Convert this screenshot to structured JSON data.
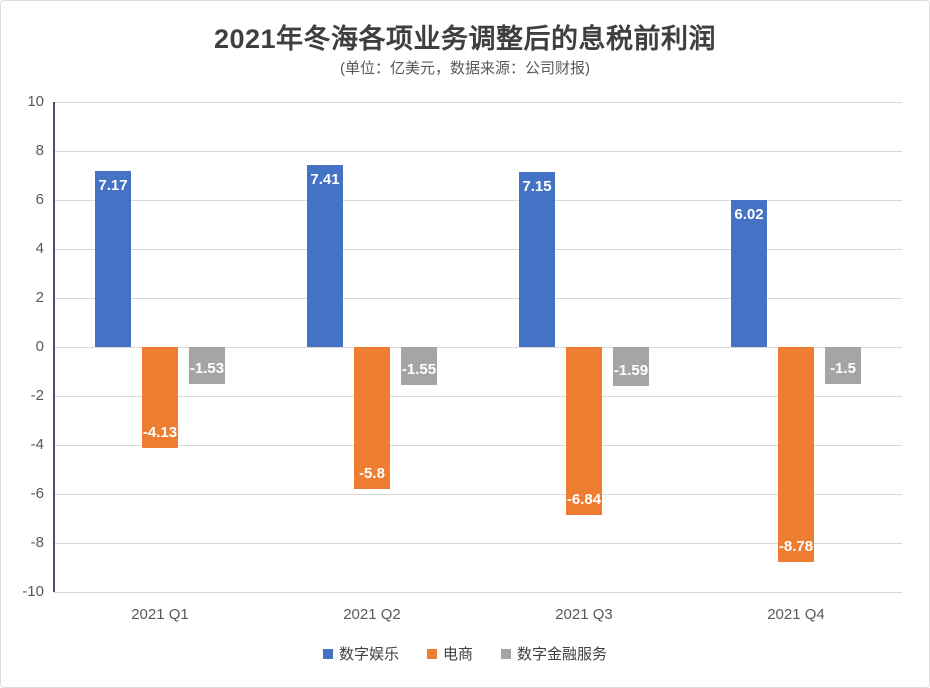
{
  "chart_data": {
    "type": "bar",
    "title": "2021年冬海各项业务调整后的息税前利润",
    "subtitle": "(单位：亿美元，数据来源：公司财报)",
    "categories": [
      "2021 Q1",
      "2021 Q2",
      "2021 Q3",
      "2021 Q4"
    ],
    "series": [
      {
        "name": "数字娱乐",
        "color": "#4472C4",
        "values": [
          7.17,
          7.41,
          7.15,
          6.02
        ],
        "labels": [
          "7.17",
          "7.41",
          "7.15",
          "6.02"
        ]
      },
      {
        "name": "电商",
        "color": "#ED7D31",
        "values": [
          -4.13,
          -5.8,
          -6.84,
          -8.78
        ],
        "labels": [
          "-4.13",
          "-5.8",
          "-6.84",
          "-8.78"
        ]
      },
      {
        "name": "数字金融服务",
        "color": "#A5A5A5",
        "values": [
          -1.53,
          -1.55,
          -1.59,
          -1.5
        ],
        "labels": [
          "-1.53",
          "-1.55",
          "-1.59",
          "-1.5"
        ]
      }
    ],
    "xlabel": "",
    "ylabel": "",
    "ylim": [
      -10,
      10
    ],
    "yticks": [
      10,
      8,
      6,
      4,
      2,
      0,
      -2,
      -4,
      -6,
      -8,
      -10
    ],
    "grid": true,
    "legend_position": "bottom",
    "colors": {
      "axis_line": "#44546A",
      "gridline": "#D9D9D9",
      "tick_label": "#595959",
      "data_label": "#FFFFFF",
      "title": "#3F3F3F",
      "border": "#DCDCDC"
    }
  }
}
